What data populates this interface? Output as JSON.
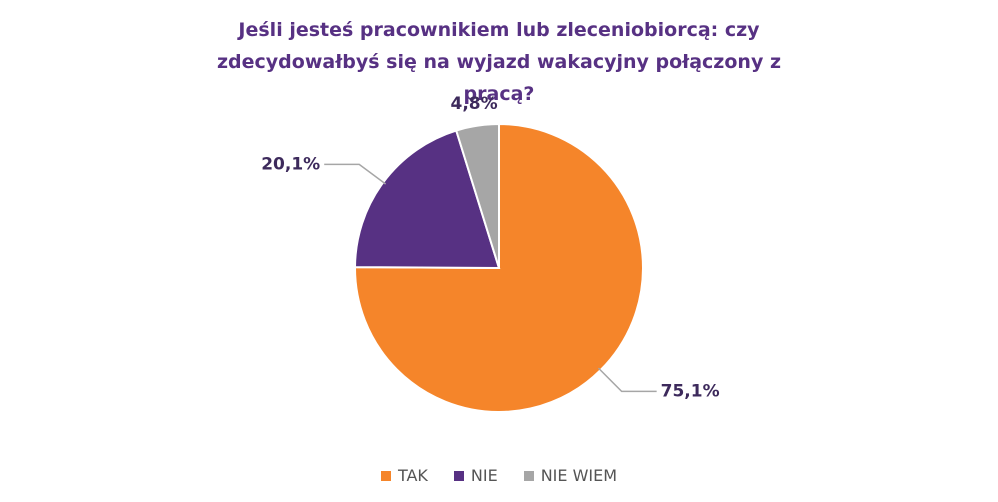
{
  "chart_data": {
    "type": "pie",
    "title": "Jeśli jesteś pracownikiem lub zleceniobiorcą: czy zdecydowałbyś się na wyjazd wakacyjny połączony z pracą?",
    "categories": [
      "TAK",
      "NIE",
      "NIE WIEM"
    ],
    "values": [
      75.1,
      20.1,
      4.8
    ],
    "value_labels": [
      "75,1%",
      "20,1%",
      "4,8%"
    ],
    "colors": [
      "#f5852a",
      "#573183",
      "#a6a6a6"
    ]
  }
}
